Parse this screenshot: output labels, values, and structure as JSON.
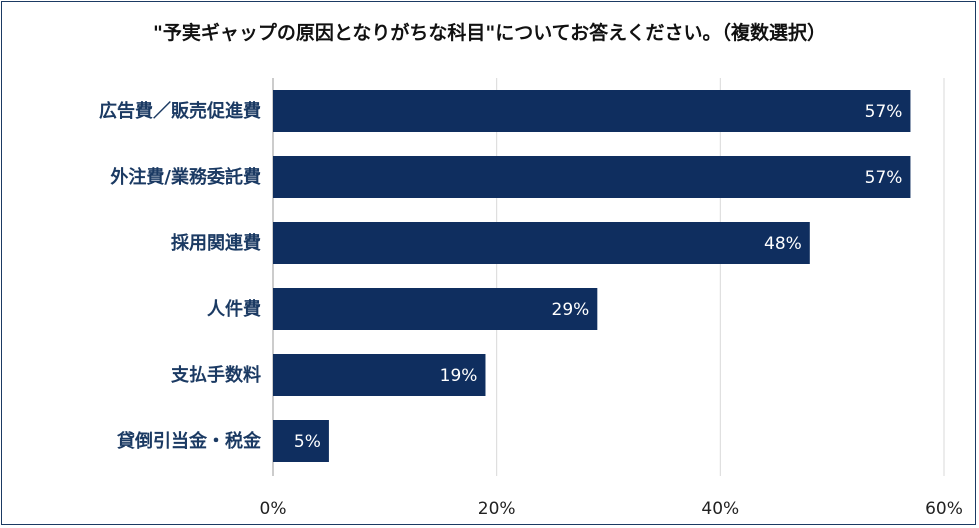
{
  "title": "\"予実ギャップの原因となりがちな科目\"についてお答えください。（複数選択）",
  "colors": {
    "bar": "#0f2e5f",
    "label": "#1b3a63",
    "grid": "#d9d9d9",
    "border": "#1b3a63"
  },
  "chart_data": {
    "type": "bar",
    "orientation": "horizontal",
    "title": "\"予実ギャップの原因となりがちな科目\"についてお答えください。（複数選択）",
    "categories": [
      "広告費／販売促進費",
      "外注費/業務委託費",
      "採用関連費",
      "人件費",
      "支払手数料",
      "貸倒引当金・税金"
    ],
    "values": [
      57,
      57,
      48,
      29,
      19,
      5
    ],
    "value_labels": [
      "57%",
      "57%",
      "48%",
      "29%",
      "19%",
      "5%"
    ],
    "xlim": [
      0,
      60
    ],
    "xticks": [
      "0%",
      "20%",
      "40%",
      "60%"
    ],
    "grid": true,
    "legend": "none"
  }
}
